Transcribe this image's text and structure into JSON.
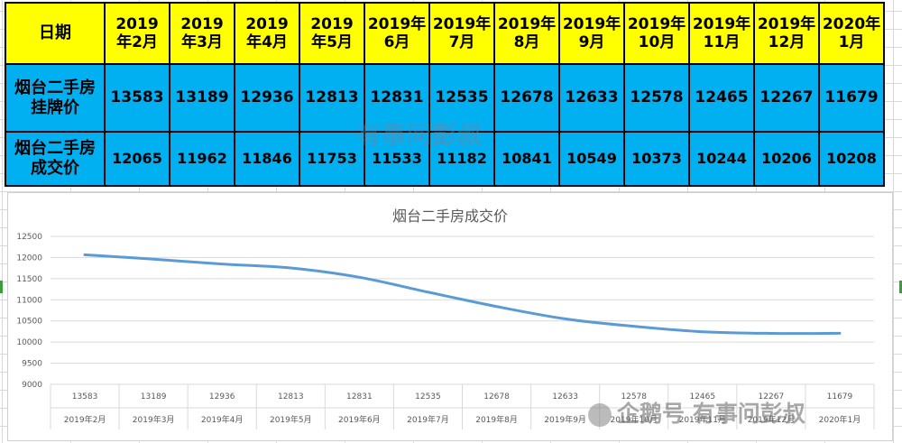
{
  "table": {
    "header_label": "日期",
    "months": [
      "2019\n年2月",
      "2019\n年3月",
      "2019\n年4月",
      "2019\n年5月",
      "2019年\n6月",
      "2019年\n7月",
      "2019年\n8月",
      "2019年\n9月",
      "2019年\n10月",
      "2019年\n11月",
      "2019年\n12月",
      "2020年\n1月"
    ],
    "listing_label": "烟台二手房\n挂牌价",
    "listing_values": [
      "13583",
      "13189",
      "12936",
      "12813",
      "12831",
      "12535",
      "12678",
      "12633",
      "12578",
      "12465",
      "12267",
      "11679"
    ],
    "deal_label": "烟台二手房\n成交价",
    "deal_values": [
      "12065",
      "11962",
      "11846",
      "11753",
      "11533",
      "11182",
      "10841",
      "10549",
      "10373",
      "10244",
      "10206",
      "10208"
    ]
  },
  "watermark_text": "有事问彭叔",
  "watermark_brand": "企鹅号 有事问彭叔",
  "colors": {
    "header_bg": "#ffff00",
    "row_bg": "#00b0f0",
    "line": "#5b9bd5"
  },
  "chart_data": {
    "type": "line",
    "title": "烟台二手房成交价",
    "categories": [
      "2019年2月",
      "2019年3月",
      "2019年4月",
      "2019年5月",
      "2019年6月",
      "2019年7月",
      "2019年8月",
      "2019年9月",
      "2019年10月",
      "2019年11月",
      "2019年12月",
      "2020年1月"
    ],
    "series": [
      {
        "values": [
          12065,
          11962,
          11846,
          11753,
          11533,
          11182,
          10841,
          10549,
          10373,
          10244,
          10206,
          10208
        ]
      }
    ],
    "category_top_labels": [
      "13583",
      "13189",
      "12936",
      "12813",
      "12831",
      "12535",
      "12678",
      "12633",
      "12578",
      "12465",
      "12267",
      "11679"
    ],
    "yticks": [
      9000,
      9500,
      10000,
      10500,
      11000,
      11500,
      12000,
      12500
    ],
    "ylim": [
      9000,
      12500
    ],
    "grid": true,
    "legend": "none"
  }
}
